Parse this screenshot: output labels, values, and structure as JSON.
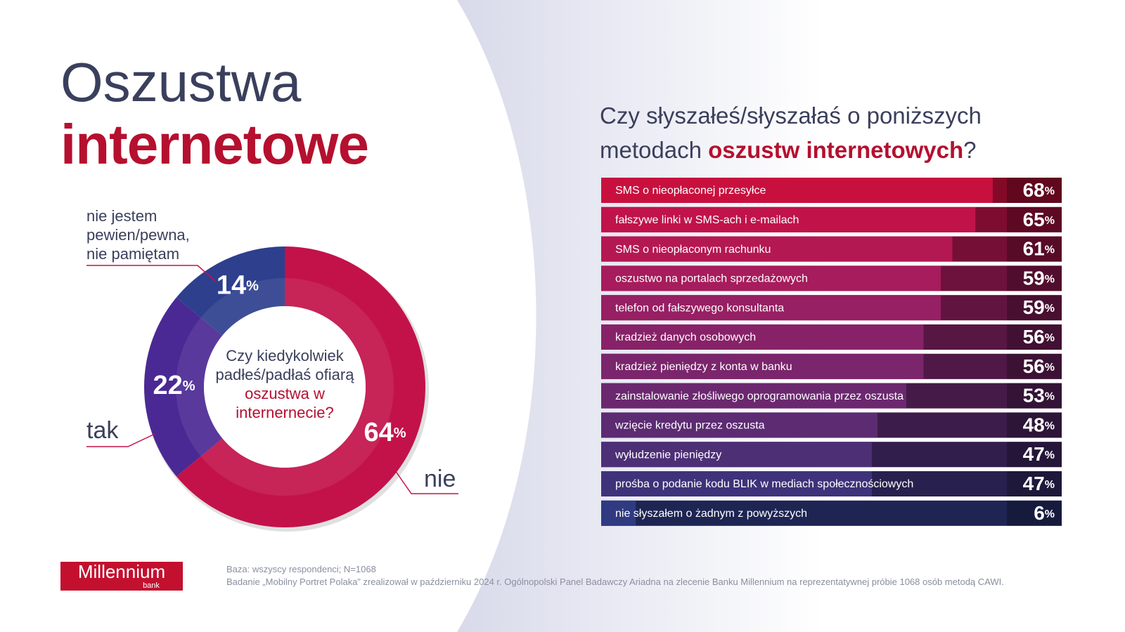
{
  "title": {
    "line1": "Oszustwa",
    "line2": "internetowe"
  },
  "chart_data": [
    {
      "type": "donut",
      "center_text": [
        "Czy kiedykolwiek padłeś/padłaś ofiarą",
        "oszustwa w internernecie?"
      ],
      "categories": [
        "nie",
        "tak",
        "nie jestem pewien/pewna, nie pamiętam"
      ],
      "values": [
        64,
        22,
        14
      ],
      "value_labels": [
        "64%",
        "22%",
        "14%"
      ],
      "colors": [
        "#c3124a",
        "#4b2994",
        "#2e3f8e"
      ]
    },
    {
      "type": "bar",
      "title": [
        "Czy słyszałeś/słyszałaś o poniższych metodach",
        "oszustw internetowych",
        "?"
      ],
      "categories": [
        "SMS o nieopłaconej przesyłce",
        "fałszywe linki w SMS-ach i e-mailach",
        "SMS o nieopłaconym rachunku",
        "oszustwo na portalach sprzedażowych",
        "telefon od fałszywego konsultanta",
        "kradzież danych osobowych",
        "kradzież pieniędzy z konta w banku",
        "zainstalowanie złośliwego oprogramowania przez oszusta",
        "wzięcie kredytu przez oszusta",
        "wyłudzenie pieniędzy",
        "prośba o podanie kodu BLIK w mediach społecznościowych",
        "nie słyszałem o żadnym z powyższych"
      ],
      "values": [
        68,
        65,
        61,
        59,
        59,
        56,
        56,
        53,
        48,
        47,
        47,
        6
      ],
      "value_labels": [
        "68%",
        "65%",
        "61%",
        "59%",
        "59%",
        "56%",
        "56%",
        "53%",
        "48%",
        "47%",
        "47%",
        "6%"
      ],
      "colors": [
        "#c8103e",
        "#c0134a",
        "#b41852",
        "#a61c5c",
        "#971f63",
        "#882268",
        "#7a256c",
        "#6b286f",
        "#5c2b72",
        "#4d2f76",
        "#3e337a",
        "#2f3a80"
      ],
      "xlim": [
        0,
        80
      ]
    }
  ],
  "footnote": [
    "Baza: wszyscy respondenci; N=1068",
    "Badanie „Mobilny Portret Polaka” zrealizował w październiku 2024 r. Ogólnopolski Panel Badawczy Ariadna na zlecenie Banku Millennium na reprezentatywnej próbie 1068 osób metodą CAWI."
  ],
  "logo": {
    "name": "Millennium",
    "sub": "bank"
  }
}
